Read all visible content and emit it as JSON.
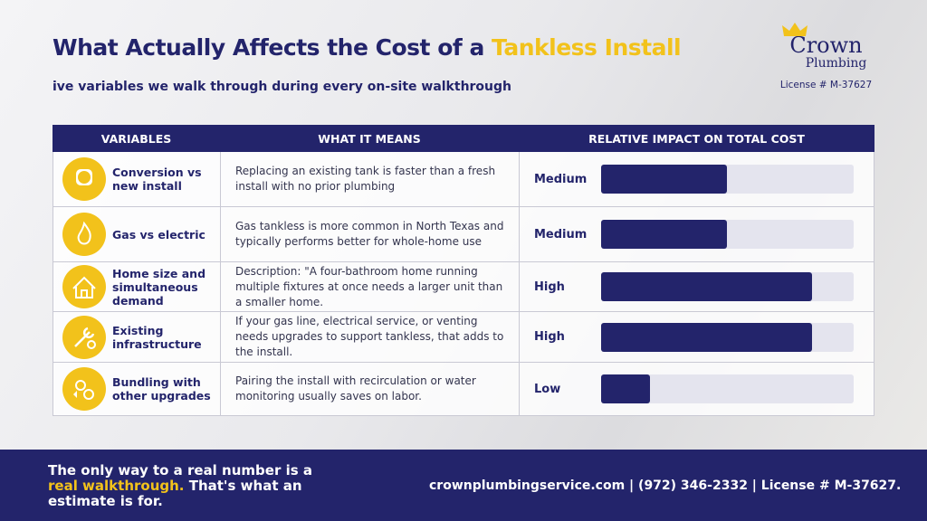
{
  "header": {
    "title": "What Actually Affects the Cost of a ",
    "title_highlight": "Tankless Install",
    "subtitle": "ive variables we walk through during every on-site walkthrough"
  },
  "logo": {
    "name_top": "Crown",
    "name_bottom": "Plumbing",
    "license": "License # M-37627"
  },
  "table": {
    "columns": [
      "VARIABLES",
      "WHAT IT MEANS",
      "RELATIVE IMPACT ON TOTAL COST"
    ],
    "rows": [
      {
        "variable": "Conversion vs new install",
        "meaning": "Replacing an existing tank is faster than a fresh install with no prior plumbing",
        "impact": "Medium"
      },
      {
        "variable": "Gas vs electric",
        "meaning": "Gas tankless is more common in North Texas and typically performs better for whole-home use",
        "impact": "Medium"
      },
      {
        "variable": "Home size and simultaneous demand",
        "meaning": "Description: \"A four-bathroom home running multiple fixtures at once needs a larger unit than a smaller home.",
        "impact": "High"
      },
      {
        "variable": "Existing infrastructure",
        "meaning": "If your gas line, electrical service, or venting needs upgrades to support tankless, that adds to the install.",
        "impact": "High"
      },
      {
        "variable": "Bundling with other upgrades",
        "meaning": "Pairing the install with recirculation or water monitoring usually saves on labor.",
        "impact": "Low"
      }
    ]
  },
  "footer": {
    "message": "The only way to a real number is a ",
    "message_highlight": "real walkthrough.",
    "message_end": " That's what an estimate is for.",
    "contact": "crownplumbingservice.com | (972) 346-2332 | License # M-37627."
  }
}
